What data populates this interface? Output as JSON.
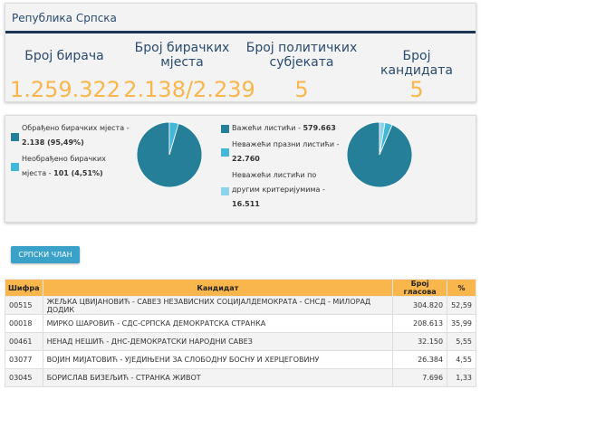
{
  "header": {
    "region_title": "Република Српска"
  },
  "stats": [
    {
      "label_line1": "Број бирача",
      "label_line2": "",
      "value": "1.259.322"
    },
    {
      "label_line1": "Број бирачких",
      "label_line2": "мјеста",
      "value": "2.138/2.239"
    },
    {
      "label_line1": "Број политичких",
      "label_line2": "субјеката",
      "value": "5"
    },
    {
      "label_line1": "Број кандидата",
      "label_line2": "",
      "value": "5"
    }
  ],
  "polling_chart": {
    "legend": [
      {
        "line1": "Обрађено бирачких мјеста -",
        "line2_value": "2.138 (95,49%)",
        "color": "#267f99"
      },
      {
        "line1": "Необрађено бирачких",
        "line2_prefix": "мјеста - ",
        "line2_value": "101 (4,51%)",
        "color": "#43b7d9"
      }
    ],
    "slices": [
      {
        "label": "Обрађено бирачких мјеста",
        "percent": 95.49,
        "color": "#267f99"
      },
      {
        "label": "Необрађено бирачких мјеста",
        "percent": 4.51,
        "color": "#43b7d9"
      }
    ]
  },
  "ballots_chart": {
    "legend": [
      {
        "line1_prefix": "Важећи листићи - ",
        "line1_value": "579.663",
        "color": "#267f99"
      },
      {
        "line1": "Неважећи празни листићи -",
        "line2_value": "22.760",
        "color": "#43b7d9"
      },
      {
        "line1": "Неважећи листићи по",
        "line2": "другим критеријумима -",
        "line3_value": "16.511",
        "color": "#8dd3ea"
      }
    ],
    "slices": [
      {
        "label": "Важећи листићи",
        "value": 579663,
        "color": "#267f99"
      },
      {
        "label": "Неважећи празни листићи",
        "value": 22760,
        "color": "#43b7d9"
      },
      {
        "label": "Неважећи листићи по другим критеријумима",
        "value": 16511,
        "color": "#8dd3ea"
      }
    ]
  },
  "tab_button": {
    "label": "СРПСКИ ЧЛАН"
  },
  "table": {
    "headers": {
      "code": "Шифра",
      "candidate": "Кандидат",
      "votes": "Број гласова",
      "pct": "%"
    },
    "rows": [
      {
        "code": "00515",
        "candidate": "ЖЕЉКА ЦВИЈАНОВИЋ - САВЕЗ НЕЗАВИСНИХ СОЦИЈАЛДЕМОКРАТА - СНСД - МИЛОРАД ДОДИК",
        "votes": "304.820",
        "pct": "52,59"
      },
      {
        "code": "00018",
        "candidate": "МИРКО ШАРОВИЋ - СДС-СРПСКА ДЕМОКРАТСКА СТРАНКА",
        "votes": "208.613",
        "pct": "35,99"
      },
      {
        "code": "00461",
        "candidate": "НЕНАД НЕШИЋ - ДНС-ДЕМОКРАТСКИ НАРОДНИ САВЕЗ",
        "votes": "32.150",
        "pct": "5,55"
      },
      {
        "code": "03077",
        "candidate": "ВОЈИН МИЈАТОВИЋ - УЈЕДИЊЕНИ ЗА СЛОБОДНУ БОСНУ И ХЕРЦЕГОВИНУ",
        "votes": "26.384",
        "pct": "4,55"
      },
      {
        "code": "03045",
        "candidate": "БОРИСЛАВ БИЗЕЉИЋ - СТРАНКА ЖИВОТ",
        "votes": "7.696",
        "pct": "1,33"
      }
    ]
  }
}
